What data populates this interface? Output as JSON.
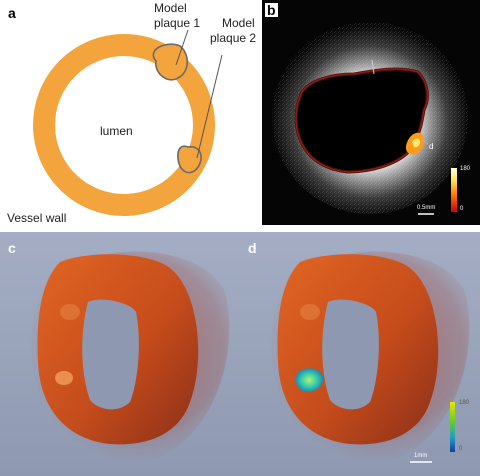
{
  "panels": {
    "a": {
      "letter": "a",
      "labels": {
        "plaque1_line1": "Model",
        "plaque1_line2": "plaque 1",
        "plaque2_line1": "Model",
        "plaque2_line2": "plaque 2",
        "lumen": "lumen",
        "vessel_wall": "Vessel wall"
      },
      "colors": {
        "wall": "#F4A43C",
        "plaque_fill": "#F4A43C",
        "plaque_edge": "#6a6a6a"
      }
    },
    "b": {
      "letter": "b",
      "point_label": "d",
      "colorbar": {
        "max": "180",
        "min": "0"
      },
      "scalebar": "0.5mm"
    },
    "c": {
      "letter": "c"
    },
    "d": {
      "letter": "d",
      "colorbar": {
        "max": "180",
        "min": "0"
      },
      "scalebar": "1mm"
    }
  }
}
